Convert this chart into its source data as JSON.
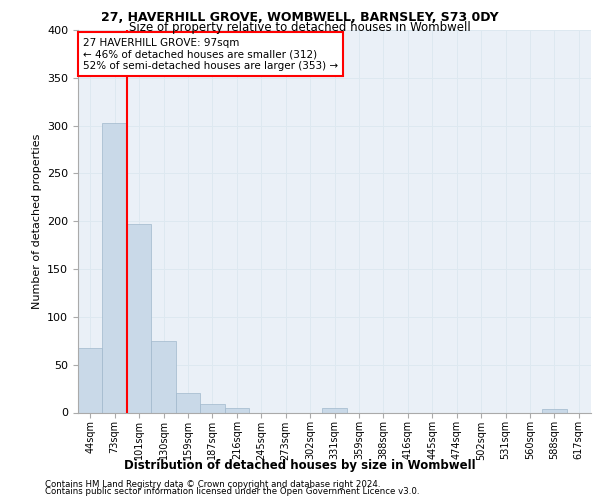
{
  "title1": "27, HAVERHILL GROVE, WOMBWELL, BARNSLEY, S73 0DY",
  "title2": "Size of property relative to detached houses in Wombwell",
  "xlabel": "Distribution of detached houses by size in Wombwell",
  "ylabel": "Number of detached properties",
  "bin_labels": [
    "44sqm",
    "73sqm",
    "101sqm",
    "130sqm",
    "159sqm",
    "187sqm",
    "216sqm",
    "245sqm",
    "273sqm",
    "302sqm",
    "331sqm",
    "359sqm",
    "388sqm",
    "416sqm",
    "445sqm",
    "474sqm",
    "502sqm",
    "531sqm",
    "560sqm",
    "588sqm",
    "617sqm"
  ],
  "bar_values": [
    67,
    303,
    197,
    75,
    20,
    9,
    5,
    0,
    0,
    0,
    5,
    0,
    0,
    0,
    0,
    0,
    0,
    0,
    0,
    4,
    0
  ],
  "bar_color": "#c9d9e8",
  "bar_edge_color": "#a0b8cc",
  "vline_x": 1.5,
  "annotation_text": "27 HAVERHILL GROVE: 97sqm\n← 46% of detached houses are smaller (312)\n52% of semi-detached houses are larger (353) →",
  "vline_color": "red",
  "ylim": [
    0,
    400
  ],
  "yticks": [
    0,
    50,
    100,
    150,
    200,
    250,
    300,
    350,
    400
  ],
  "grid_color": "#dde8f0",
  "background_color": "#eaf0f7",
  "footer1": "Contains HM Land Registry data © Crown copyright and database right 2024.",
  "footer2": "Contains public sector information licensed under the Open Government Licence v3.0."
}
